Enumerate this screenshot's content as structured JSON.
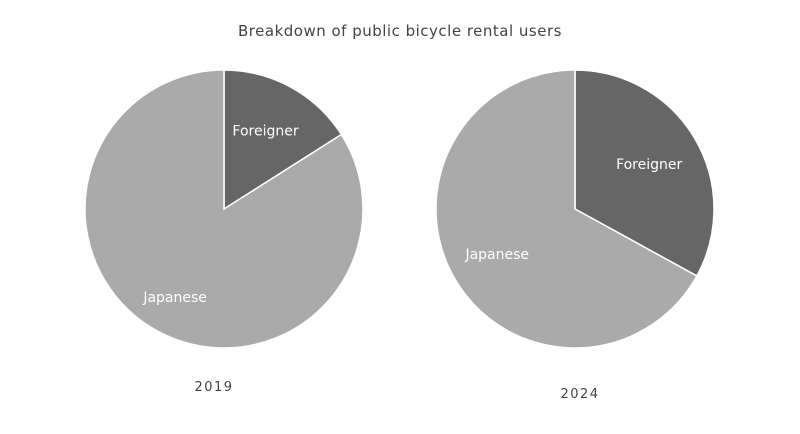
{
  "chart_data": {
    "type": "pie",
    "title": "Breakdown of public bicycle rental users",
    "colors": {
      "Japanese": "#aaaaaa",
      "Foreigner": "#666666"
    },
    "pies": [
      {
        "year": "2019",
        "slices": [
          {
            "label": "Foreigner",
            "value": 16
          },
          {
            "label": "Japanese",
            "value": 84
          }
        ]
      },
      {
        "year": "2024",
        "slices": [
          {
            "label": "Foreigner",
            "value": 33
          },
          {
            "label": "Japanese",
            "value": 67
          }
        ]
      }
    ]
  }
}
